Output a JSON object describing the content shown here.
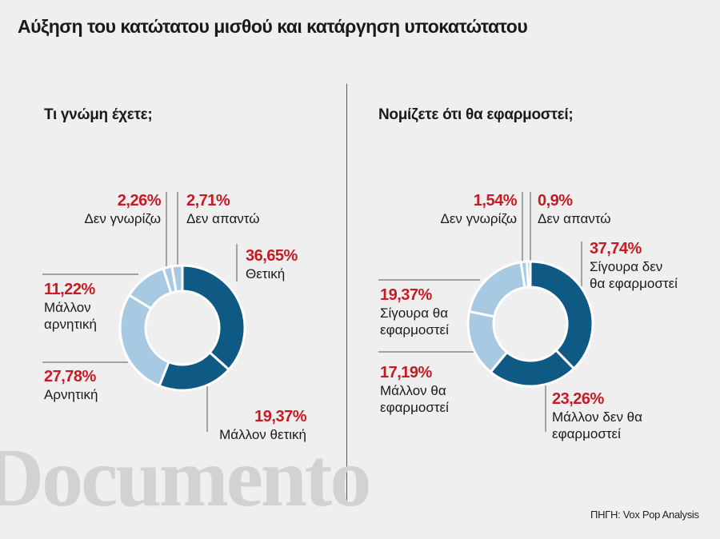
{
  "title": "Αύξηση του κατώτατου μισθού και κατάργηση υποκατώτατου",
  "watermark": "Documento",
  "source": "ΠΗΓΗ: Vox Pop Analysis",
  "colors": {
    "dark": "#0e5a85",
    "light": "#a8c9e2",
    "label_red": "#c41b24"
  },
  "chart_data": [
    {
      "type": "pie",
      "title": "Τι γνώμη έχετε;",
      "slices": [
        {
          "label": "Θετική",
          "value": 36.65,
          "pct_text": "36,65%",
          "color": "#0e5a85"
        },
        {
          "label": "Μάλλον θετική",
          "value": 19.37,
          "pct_text": "19,37%",
          "color": "#0e5a85"
        },
        {
          "label": "Αρνητική",
          "value": 27.78,
          "pct_text": "27,78%",
          "color": "#a8c9e2"
        },
        {
          "label": "Μάλλον\nαρνητική",
          "value": 11.22,
          "pct_text": "11,22%",
          "color": "#a8c9e2"
        },
        {
          "label": "Δεν γνωρίζω",
          "value": 2.26,
          "pct_text": "2,26%",
          "color": "#a8c9e2"
        },
        {
          "label": "Δεν απαντώ",
          "value": 2.71,
          "pct_text": "2,71%",
          "color": "#a8c9e2"
        }
      ]
    },
    {
      "type": "pie",
      "title": "Νομίζετε ότι θα εφαρμοστεί;",
      "slices": [
        {
          "label": "Σίγουρα δεν\nθα εφαρμοστεί",
          "value": 37.74,
          "pct_text": "37,74%",
          "color": "#0e5a85"
        },
        {
          "label": "Μάλλον δεν θα\nεφαρμοστεί",
          "value": 23.26,
          "pct_text": "23,26%",
          "color": "#0e5a85"
        },
        {
          "label": "Μάλλον θα\nεφαρμοστεί",
          "value": 17.19,
          "pct_text": "17,19%",
          "color": "#a8c9e2"
        },
        {
          "label": "Σίγουρα θα\nεφαρμοστεί",
          "value": 19.37,
          "pct_text": "19,37%",
          "color": "#a8c9e2"
        },
        {
          "label": "Δεν γνωρίζω",
          "value": 1.54,
          "pct_text": "1,54%",
          "color": "#a8c9e2"
        },
        {
          "label": "Δεν απαντώ",
          "value": 0.9,
          "pct_text": "0,9%",
          "color": "#a8c9e2"
        }
      ]
    }
  ]
}
